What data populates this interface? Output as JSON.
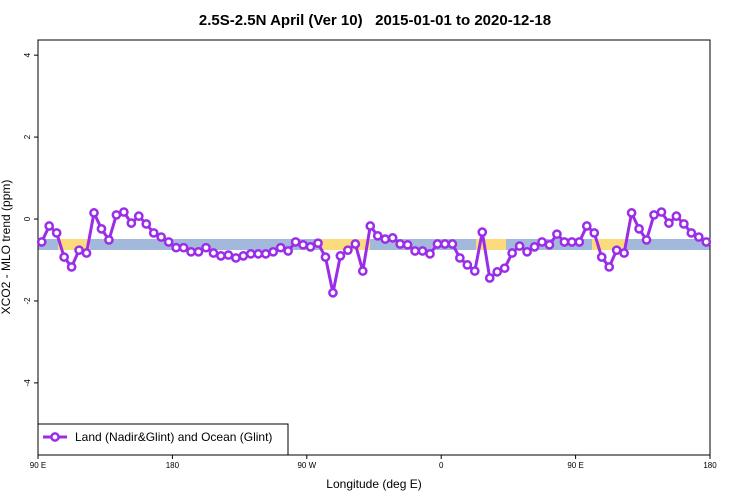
{
  "chart_data": {
    "type": "line",
    "title": "2.5S-2.5N April (Ver 10)   2015-01-01 to 2020-12-18",
    "x_label": "Longitude (deg E)",
    "y_label": "XCO2 - MLO trend (ppm)",
    "xlim": [
      90,
      540
    ],
    "ylim": [
      -5.76,
      4.37
    ],
    "xticks": [
      {
        "value": 90,
        "label": "90 E"
      },
      180,
      {
        "value": 270,
        "label": "90 W"
      },
      {
        "value": 360,
        "label": "0"
      },
      {
        "value": 450,
        "label": "90 E"
      },
      {
        "value": 540,
        "label": "180"
      }
    ],
    "yticks": [
      -4,
      -2,
      0,
      2,
      4
    ],
    "x": [
      92.5,
      97.5,
      102.5,
      107.5,
      112.5,
      117.5,
      122.5,
      127.5,
      132.5,
      137.5,
      142.5,
      147.5,
      152.5,
      157.5,
      162.5,
      167.5,
      172.5,
      177.5,
      182.5,
      187.5,
      192.5,
      197.5,
      202.5,
      207.5,
      212.5,
      217.5,
      222.5,
      227.5,
      232.5,
      237.5,
      242.5,
      247.5,
      252.5,
      257.5,
      262.5,
      267.5,
      272.5,
      277.5,
      282.5,
      287.5,
      292.5,
      297.5,
      302.5,
      307.5,
      312.5,
      317.5,
      322.5,
      327.5,
      332.5,
      337.5,
      342.5,
      347.5,
      352.5,
      357.5,
      362.5,
      367.5,
      372.5,
      377.5,
      382.5,
      387.5,
      392.5,
      397.5,
      402.5,
      407.5,
      412.5,
      417.5,
      422.5,
      427.5,
      432.5,
      437.5,
      442.5,
      447.5,
      452.5,
      457.5,
      462.5,
      467.5,
      472.5,
      477.5,
      482.5,
      487.5,
      492.5,
      497.5,
      502.5,
      507.5,
      512.5,
      517.5,
      522.5,
      527.5,
      532.5,
      537.5
    ],
    "series": [
      {
        "name": "Land (Nadir&Glint) and Ocean (Glint)",
        "color": "#9b2ce8",
        "values": [
          -0.56,
          -0.17,
          -0.34,
          -0.93,
          -1.17,
          -0.76,
          -0.83,
          0.15,
          -0.24,
          -0.51,
          0.1,
          0.17,
          -0.1,
          0.07,
          -0.12,
          -0.34,
          -0.44,
          -0.56,
          -0.7,
          -0.7,
          -0.8,
          -0.8,
          -0.7,
          -0.83,
          -0.9,
          -0.88,
          -0.95,
          -0.9,
          -0.85,
          -0.85,
          -0.85,
          -0.8,
          -0.7,
          -0.78,
          -0.56,
          -0.63,
          -0.68,
          -0.59,
          -0.93,
          -1.8,
          -0.9,
          -0.76,
          -0.61,
          -1.27,
          -0.17,
          -0.41,
          -0.49,
          -0.46,
          -0.61,
          -0.63,
          -0.78,
          -0.78,
          -0.85,
          -0.61,
          -0.61,
          -0.61,
          -0.95,
          -1.12,
          -1.27,
          -0.32,
          -1.44,
          -1.29,
          -1.2,
          -0.83,
          -0.66,
          -0.8,
          -0.68,
          -0.56,
          -0.63,
          -0.37,
          -0.56,
          -0.56,
          -0.56,
          -0.17,
          -0.34,
          -0.93,
          -1.17,
          -0.76,
          -0.83,
          0.15,
          -0.24,
          -0.51,
          0.1,
          0.17,
          -0.1,
          0.07,
          -0.12,
          -0.34,
          -0.44,
          -0.56
        ]
      }
    ]
  }
}
